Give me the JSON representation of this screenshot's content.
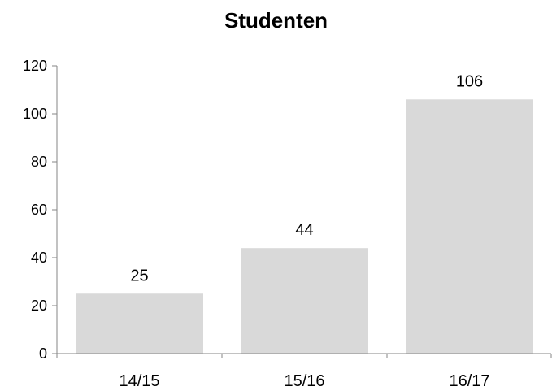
{
  "chart_data": {
    "type": "bar",
    "title": "Studenten",
    "categories": [
      "14/15",
      "15/16",
      "16/17"
    ],
    "values": [
      25,
      44,
      106
    ],
    "ylim": [
      0,
      120
    ],
    "yticks": [
      0,
      20,
      40,
      60,
      80,
      100,
      120
    ],
    "xlabel": "",
    "ylabel": "",
    "grid": false,
    "legend": "none",
    "data_labels": true,
    "colors": {
      "bar": "#d9d9d9",
      "axis": "#868686",
      "text": "#000000"
    }
  }
}
